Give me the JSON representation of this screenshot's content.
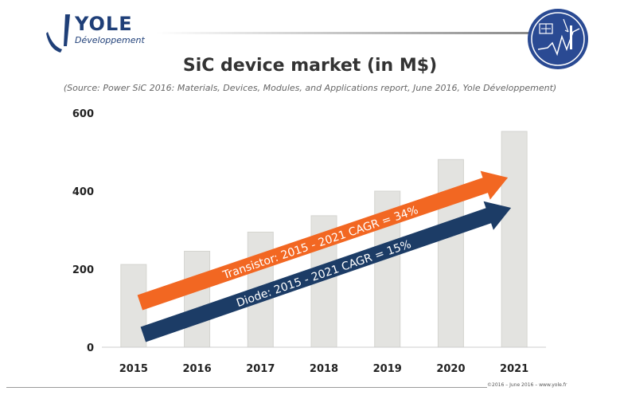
{
  "header": {
    "logo_brand": "YOLE",
    "logo_sub": "Développement"
  },
  "colors": {
    "bar": "#e3e3e0",
    "bar_edge": "#d4d4d0",
    "transistor_arrow": "#f26722",
    "diode_arrow": "#1c3c66",
    "brand": "#1f3f78",
    "badge_bg": "#2a4a93"
  },
  "footer": {
    "text": "©2016 – June 2016 – www.yole.fr"
  },
  "chart_data": {
    "type": "bar",
    "title": "SiC device market (in M$)",
    "subtitle": "(Source: Power SiC 2016: Materials, Devices, Modules, and Applications report, June 2016, Yole Développement)",
    "xlabel": "",
    "ylabel": "",
    "categories": [
      "2015",
      "2016",
      "2017",
      "2018",
      "2019",
      "2020",
      "2021"
    ],
    "values": [
      212,
      246,
      295,
      337,
      400,
      481,
      553
    ],
    "ylim": [
      0,
      600
    ],
    "yticks": [
      0,
      200,
      400,
      600
    ],
    "grid": false,
    "annotations": [
      {
        "text": "Transistor: 2015 - 2021 CAGR = 34%",
        "color": "#f26722"
      },
      {
        "text": "Diode: 2015 - 2021 CAGR = 15%",
        "color": "#1c3c66"
      }
    ]
  }
}
